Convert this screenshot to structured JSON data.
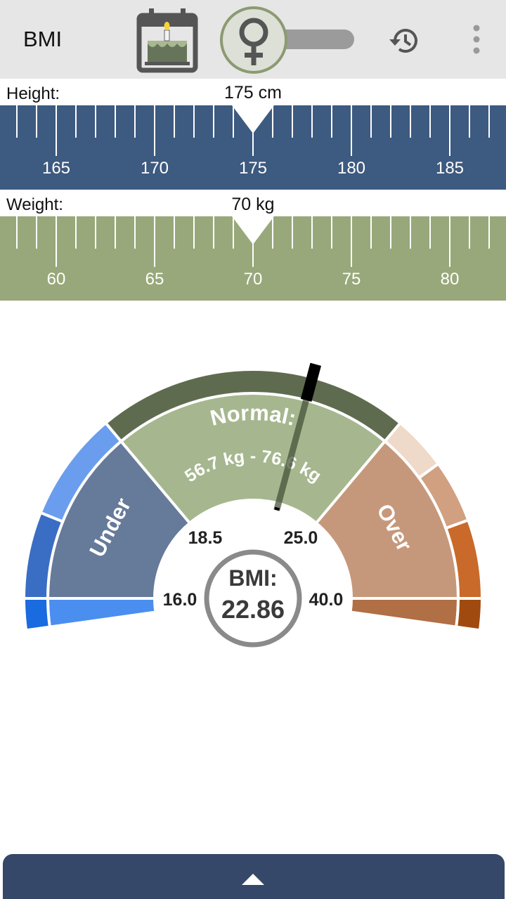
{
  "appbar": {
    "title": "BMI",
    "icons": [
      "birthday-cake-calendar-icon",
      "female-icon",
      "history-icon",
      "more-vert-icon"
    ],
    "gender_toggle_state": "female"
  },
  "height": {
    "label": "Height:",
    "value": "175 cm",
    "ticks": [
      "165",
      "170",
      "175",
      "180",
      "185"
    ],
    "color": "#3d5a80"
  },
  "weight": {
    "label": "Weight:",
    "value": "70 kg",
    "ticks": [
      "60",
      "65",
      "70",
      "75",
      "80"
    ],
    "color": "#98a87a"
  },
  "gauge": {
    "normal_label": "Normal:",
    "normal_range": "56.7 kg - 76.6 kg",
    "under_label": "Under",
    "over_label": "Over",
    "thresholds": [
      "16.0",
      "18.5",
      "25.0",
      "40.0"
    ],
    "bmi_label": "BMI:",
    "bmi_value": "22.86",
    "colors": {
      "under_inner": "#667a9a",
      "normal_inner": "#a6b78f",
      "over_inner": "#c6987b",
      "normal_outer": "#5f6b4f",
      "needle": "#000000"
    }
  },
  "bottom": {
    "icons": [
      "expand-up-icon"
    ]
  }
}
